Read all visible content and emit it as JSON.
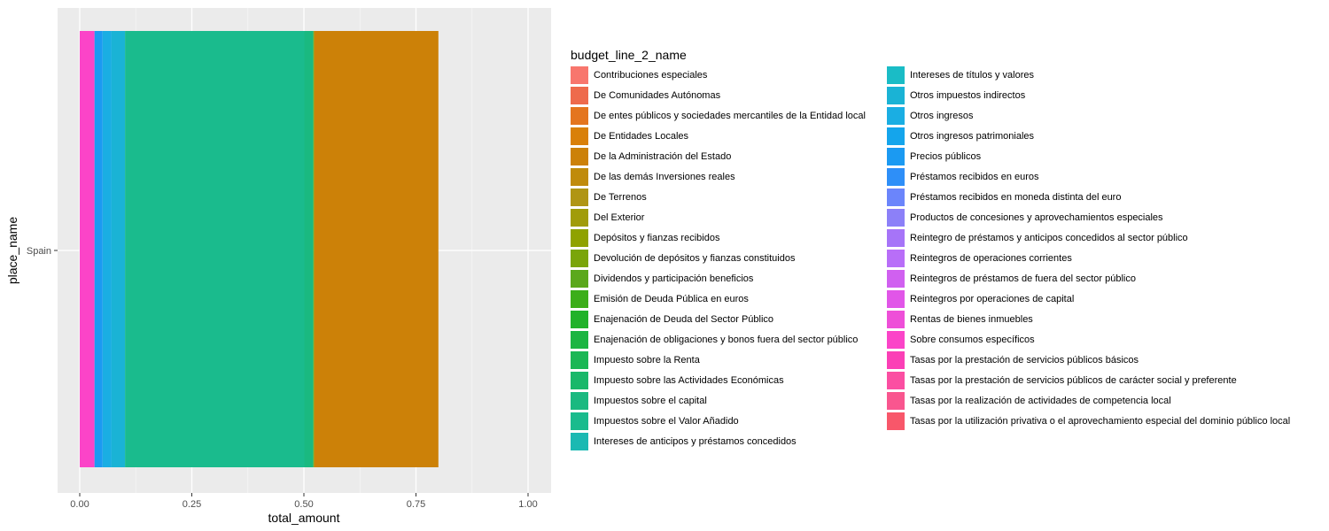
{
  "chart_data": {
    "type": "bar",
    "orientation": "horizontal",
    "stacked": "fill",
    "xlabel": "total_amount",
    "ylabel": "place_name",
    "categories": [
      "Spain"
    ],
    "xlim": [
      0,
      1
    ],
    "x_ticks": [
      "0.00",
      "0.25",
      "0.50",
      "0.75",
      "1.00"
    ],
    "grid": true,
    "legend_position": "right",
    "legend_title": "budget_line_2_name",
    "series": [
      {
        "name": "Contribuciones especiales",
        "color": "#F8766D",
        "values": [
          0.0
        ]
      },
      {
        "name": "De Comunidades Autónomas",
        "color": "#EE6A4C",
        "values": [
          0.0
        ]
      },
      {
        "name": "De entes públicos y sociedades mercantiles de la Entidad local",
        "color": "#E4751E",
        "values": [
          0.0
        ]
      },
      {
        "name": "De Entidades Locales",
        "color": "#D98009",
        "values": [
          0.0
        ]
      },
      {
        "name": "De la Administración del Estado",
        "color": "#CC8108",
        "values": [
          0.277
        ]
      },
      {
        "name": "De las demás Inversiones reales",
        "color": "#C08B0B",
        "values": [
          0.0
        ]
      },
      {
        "name": "De Terrenos",
        "color": "#B09514",
        "values": [
          0.0
        ]
      },
      {
        "name": "Del Exterior",
        "color": "#A19C0A",
        "values": [
          0.0
        ]
      },
      {
        "name": "Depósitos y fianzas recibidos",
        "color": "#8FA200",
        "values": [
          0.0
        ]
      },
      {
        "name": "Devolución de depósitos y fianzas constituidos",
        "color": "#7AA50A",
        "values": [
          0.002
        ]
      },
      {
        "name": "Dividendos y participación beneficios",
        "color": "#5BA81C",
        "values": [
          0.0
        ]
      },
      {
        "name": "Emisión de Deuda Pública en euros",
        "color": "#3CAE1A",
        "values": [
          0.0
        ]
      },
      {
        "name": "Enajenación de Deuda del Sector Público",
        "color": "#21B22A",
        "values": [
          0.0
        ]
      },
      {
        "name": "Enajenación de obligaciones y bonos fuera del sector público",
        "color": "#1CB542",
        "values": [
          0.0
        ]
      },
      {
        "name": "Impuesto sobre la Renta",
        "color": "#1BB755",
        "values": [
          0.0
        ]
      },
      {
        "name": "Impuesto sobre las Actividades Económicas",
        "color": "#1AB86A",
        "values": [
          0.0
        ]
      },
      {
        "name": "Impuestos sobre el capital",
        "color": "#1AB980",
        "values": [
          0.02
        ]
      },
      {
        "name": "Impuestos sobre el Valor Añadido",
        "color": "#1ABB8D",
        "values": [
          0.4
        ]
      },
      {
        "name": "Intereses de anticipos y préstamos concedidos",
        "color": "#1BB9B2",
        "values": [
          0.0
        ]
      },
      {
        "name": "Intereses de títulos y valores",
        "color": "#1ABCC6",
        "values": [
          0.0
        ]
      },
      {
        "name": "Otros impuestos indirectos",
        "color": "#1AB3D5",
        "values": [
          0.03
        ]
      },
      {
        "name": "Otros ingresos",
        "color": "#1AAEE3",
        "values": [
          0.02
        ]
      },
      {
        "name": "Otros ingresos patrimoniales",
        "color": "#14A5EC",
        "values": [
          0.0
        ]
      },
      {
        "name": "Precios públicos",
        "color": "#1B9AF2",
        "values": [
          0.018
        ]
      },
      {
        "name": "Préstamos recibidos en euros",
        "color": "#2E8FF8",
        "values": [
          0.0
        ]
      },
      {
        "name": "Préstamos recibidos en moneda distinta del euro",
        "color": "#6B85FB",
        "values": [
          0.0
        ]
      },
      {
        "name": "Productos de concesiones y aprovechamientos especiales",
        "color": "#8C80F8",
        "values": [
          0.0
        ]
      },
      {
        "name": "Reintegro de préstamos y anticipos concedidos al sector público",
        "color": "#A674F8",
        "values": [
          0.0
        ]
      },
      {
        "name": "Reintegros de operaciones corrientes",
        "color": "#B86EF8",
        "values": [
          0.0
        ]
      },
      {
        "name": "Reintegros de préstamos de fuera del sector público",
        "color": "#D060F0",
        "values": [
          0.0
        ]
      },
      {
        "name": "Reintegros por operaciones de capital",
        "color": "#E156E8",
        "values": [
          0.0
        ]
      },
      {
        "name": "Rentas de bienes inmuebles",
        "color": "#EE4FD8",
        "values": [
          0.0
        ]
      },
      {
        "name": "Sobre consumos específicos",
        "color": "#FB44C8",
        "values": [
          0.033
        ]
      },
      {
        "name": "Tasas por la prestación de servicios públicos básicos",
        "color": "#FB3FB6",
        "values": [
          0.0
        ]
      },
      {
        "name": "Tasas por la prestación de servicios públicos de carácter social y preferente",
        "color": "#FB4EA2",
        "values": [
          0.0
        ]
      },
      {
        "name": "Tasas por la realización de actividades de competencia local",
        "color": "#F9568F",
        "values": [
          0.0
        ]
      },
      {
        "name": "Tasas por la utilización privativa o el aprovechamiento especial del dominio público local",
        "color": "#F8576A",
        "values": [
          0.0
        ]
      }
    ]
  }
}
